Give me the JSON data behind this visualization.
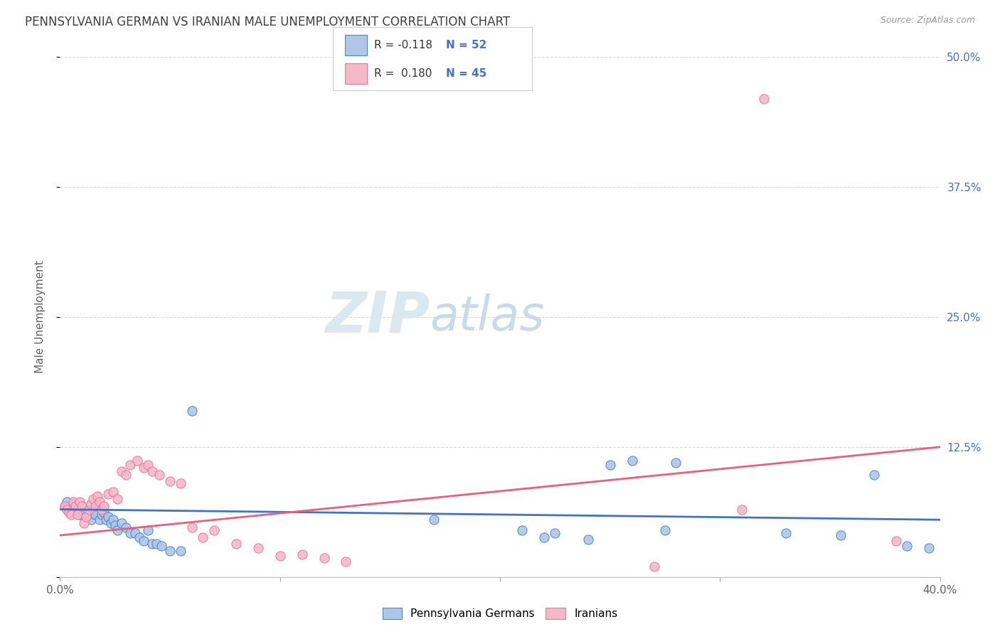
{
  "title": "PENNSYLVANIA GERMAN VS IRANIAN MALE UNEMPLOYMENT CORRELATION CHART",
  "source": "Source: ZipAtlas.com",
  "ylabel": "Male Unemployment",
  "xlim": [
    0.0,
    0.4
  ],
  "ylim": [
    0.0,
    0.5
  ],
  "yticks": [
    0.0,
    0.125,
    0.25,
    0.375,
    0.5
  ],
  "ytick_labels": [
    "",
    "12.5%",
    "25.0%",
    "37.5%",
    "50.0%"
  ],
  "xticks": [
    0.0,
    0.1,
    0.2,
    0.3,
    0.4
  ],
  "xtick_labels": [
    "0.0%",
    "",
    "",
    "",
    "40.0%"
  ],
  "background_color": "#ffffff",
  "grid_color": "#d8d8d8",
  "watermark_zip": "ZIP",
  "watermark_atlas": "atlas",
  "blue_fill": "#aec6e8",
  "pink_fill": "#f5b8c8",
  "blue_edge": "#4f86c6",
  "pink_edge": "#e8789a",
  "blue_line": "#4472c4",
  "pink_line": "#e8607a",
  "title_color": "#404040",
  "label_color": "#606060",
  "tick_right_color": "#4472c4",
  "legend_r1": "R = -0.118",
  "legend_n1": "N = 52",
  "legend_r2": "R =  0.180",
  "legend_n2": "N = 45",
  "german_x": [
    0.002,
    0.003,
    0.004,
    0.005,
    0.006,
    0.007,
    0.008,
    0.009,
    0.01,
    0.011,
    0.012,
    0.013,
    0.014,
    0.015,
    0.016,
    0.017,
    0.018,
    0.019,
    0.02,
    0.021,
    0.022,
    0.023,
    0.024,
    0.025,
    0.026,
    0.028,
    0.03,
    0.032,
    0.034,
    0.036,
    0.038,
    0.04,
    0.042,
    0.044,
    0.046,
    0.05,
    0.055,
    0.06,
    0.17,
    0.21,
    0.22,
    0.225,
    0.24,
    0.25,
    0.26,
    0.275,
    0.28,
    0.33,
    0.355,
    0.37,
    0.385,
    0.395
  ],
  "german_y": [
    0.068,
    0.072,
    0.065,
    0.062,
    0.07,
    0.068,
    0.065,
    0.06,
    0.068,
    0.062,
    0.058,
    0.06,
    0.055,
    0.065,
    0.06,
    0.07,
    0.055,
    0.06,
    0.062,
    0.055,
    0.058,
    0.052,
    0.055,
    0.05,
    0.045,
    0.052,
    0.048,
    0.042,
    0.042,
    0.038,
    0.035,
    0.045,
    0.032,
    0.032,
    0.03,
    0.025,
    0.025,
    0.16,
    0.055,
    0.045,
    0.038,
    0.042,
    0.036,
    0.108,
    0.112,
    0.045,
    0.11,
    0.042,
    0.04,
    0.098,
    0.03,
    0.028
  ],
  "iranian_x": [
    0.002,
    0.003,
    0.004,
    0.005,
    0.006,
    0.007,
    0.008,
    0.009,
    0.01,
    0.011,
    0.012,
    0.013,
    0.014,
    0.015,
    0.016,
    0.017,
    0.018,
    0.019,
    0.02,
    0.022,
    0.024,
    0.026,
    0.028,
    0.03,
    0.032,
    0.035,
    0.038,
    0.04,
    0.042,
    0.045,
    0.05,
    0.055,
    0.06,
    0.065,
    0.07,
    0.08,
    0.09,
    0.1,
    0.11,
    0.12,
    0.13,
    0.27,
    0.31,
    0.32,
    0.38
  ],
  "iranian_y": [
    0.068,
    0.065,
    0.062,
    0.06,
    0.072,
    0.068,
    0.06,
    0.072,
    0.068,
    0.052,
    0.058,
    0.065,
    0.07,
    0.075,
    0.068,
    0.078,
    0.072,
    0.065,
    0.068,
    0.08,
    0.082,
    0.075,
    0.102,
    0.098,
    0.108,
    0.112,
    0.105,
    0.108,
    0.102,
    0.098,
    0.092,
    0.09,
    0.048,
    0.038,
    0.045,
    0.032,
    0.028,
    0.02,
    0.022,
    0.018,
    0.015,
    0.01,
    0.065,
    0.46,
    0.035
  ]
}
